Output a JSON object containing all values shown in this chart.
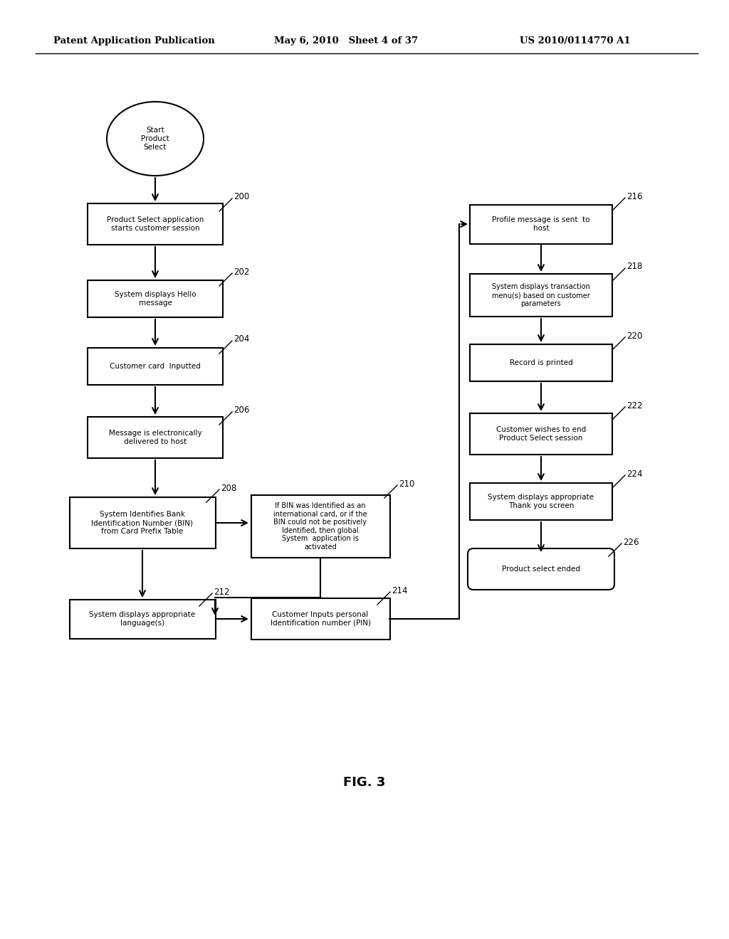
{
  "header_left": "Patent Application Publication",
  "header_mid": "May 6, 2010   Sheet 4 of 37",
  "header_right": "US 2010/0114770 A1",
  "fig_label": "FIG. 3",
  "bg_color": "#ffffff"
}
